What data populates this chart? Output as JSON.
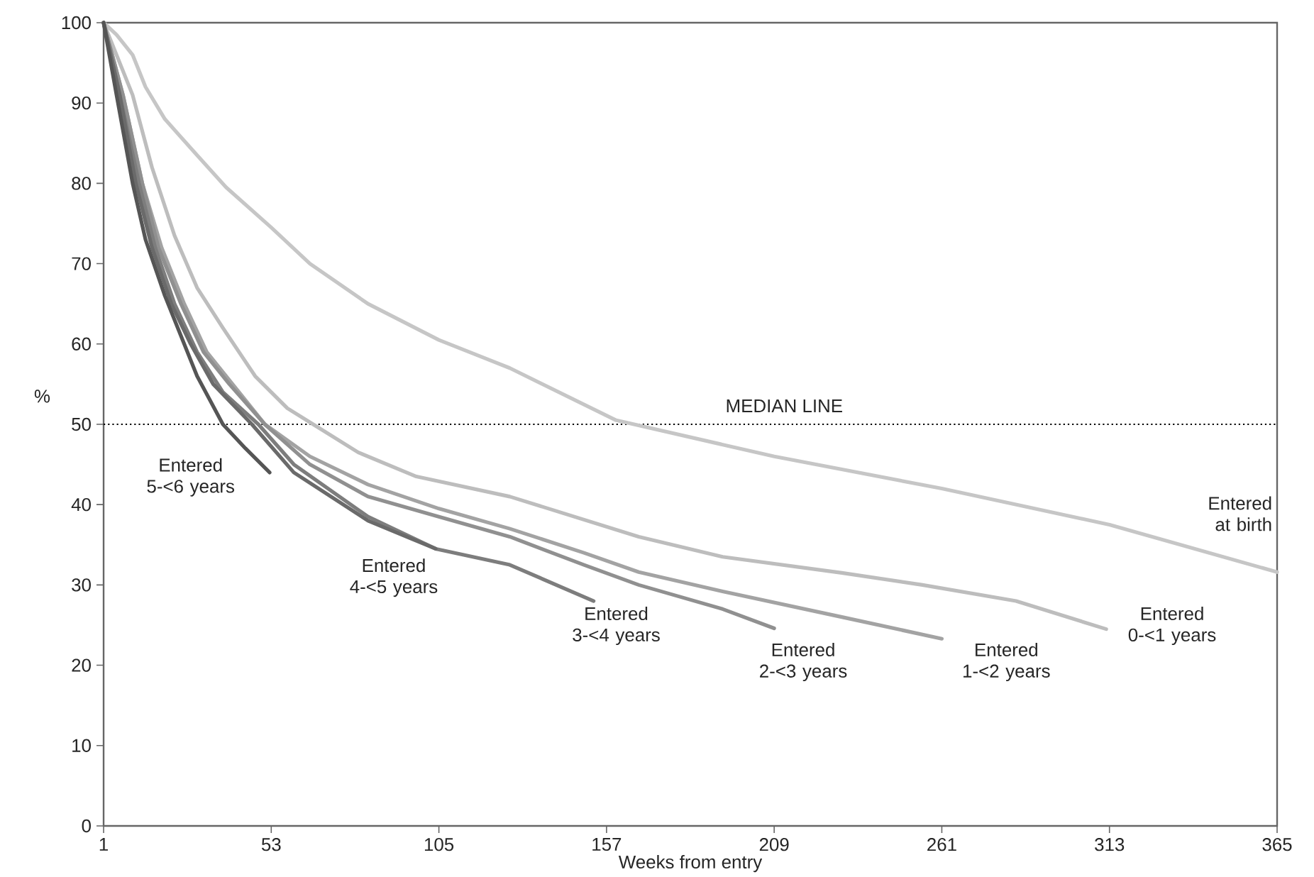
{
  "chart_data": {
    "type": "line",
    "xlabel": "Weeks from entry",
    "ylabel": "%",
    "xlim": [
      1,
      365
    ],
    "xticks": [
      1,
      53,
      105,
      157,
      209,
      261,
      313,
      365
    ],
    "ylim": [
      0,
      100
    ],
    "yticks": [
      0,
      10,
      20,
      30,
      40,
      50,
      60,
      70,
      80,
      90,
      100
    ],
    "ref_lines": [
      {
        "axis": "y",
        "value": 50,
        "label": "MEDIAN LINE",
        "color": "#000000",
        "line_style": "dotted"
      }
    ],
    "series": [
      {
        "name": "Entered at birth",
        "color": "#c6c6c6",
        "x": [
          1,
          5,
          10,
          14,
          20,
          30,
          39,
          53,
          65,
          83,
          105,
          127,
          160,
          209,
          261,
          313,
          365
        ],
        "values": [
          100,
          98.5,
          96,
          92,
          88,
          83.5,
          79.5,
          74.5,
          70,
          65,
          60.5,
          57,
          50.5,
          46,
          42,
          37.5,
          31.6
        ]
      },
      {
        "name": "Entered 0-<1 years",
        "color": "#bdbdbd",
        "x": [
          1,
          5,
          10,
          16,
          23,
          30,
          38,
          48,
          58,
          66,
          80,
          98,
          127,
          167,
          193,
          230,
          255,
          284,
          312
        ],
        "values": [
          100,
          96,
          91,
          82,
          73.5,
          67,
          62,
          56,
          52,
          50,
          46.5,
          43.5,
          41,
          36,
          33.5,
          31.5,
          30,
          28,
          24.5
        ]
      },
      {
        "name": "Entered 1-<2 years",
        "color": "#a3a3a3",
        "x": [
          1,
          7,
          13,
          19,
          26,
          33,
          41,
          51,
          65,
          83,
          105,
          127,
          150,
          167,
          193,
          230,
          261
        ],
        "values": [
          100,
          91,
          80,
          72,
          65,
          59,
          55,
          50,
          46,
          42.5,
          39.5,
          37,
          34,
          31.6,
          29.2,
          26,
          23.3
        ]
      },
      {
        "name": "Entered 2-<3 years",
        "color": "#909090",
        "x": [
          1,
          7,
          13,
          18,
          25,
          32,
          40,
          51,
          65,
          83,
          105,
          127,
          150,
          167,
          193,
          209
        ],
        "values": [
          100,
          91,
          80,
          72,
          65,
          59,
          55,
          50,
          45,
          41,
          38.5,
          36,
          32.5,
          30,
          27,
          24.6
        ]
      },
      {
        "name": "Entered 3-<4 years",
        "color": "#7d7d7d",
        "x": [
          1,
          6,
          12,
          17,
          23,
          30,
          38,
          49,
          60,
          83,
          104,
          127,
          153
        ],
        "values": [
          100,
          91,
          80,
          72,
          65,
          59,
          54,
          50,
          45,
          38.5,
          34.5,
          32.5,
          28
        ]
      },
      {
        "name": "Entered 4-<5 years",
        "color": "#6a6a6a",
        "x": [
          1,
          6,
          11,
          16,
          22,
          28,
          35,
          47,
          60,
          83,
          104
        ],
        "values": [
          100,
          91,
          80,
          72,
          65,
          60,
          55,
          50,
          44,
          38,
          34.5
        ]
      },
      {
        "name": "Entered 5-<6 years",
        "color": "#555555",
        "x": [
          1,
          5,
          10,
          14,
          20,
          25,
          30,
          38,
          45,
          52.5
        ],
        "values": [
          100,
          91,
          80,
          73,
          66,
          61,
          56,
          50,
          47,
          44
        ]
      }
    ]
  }
}
